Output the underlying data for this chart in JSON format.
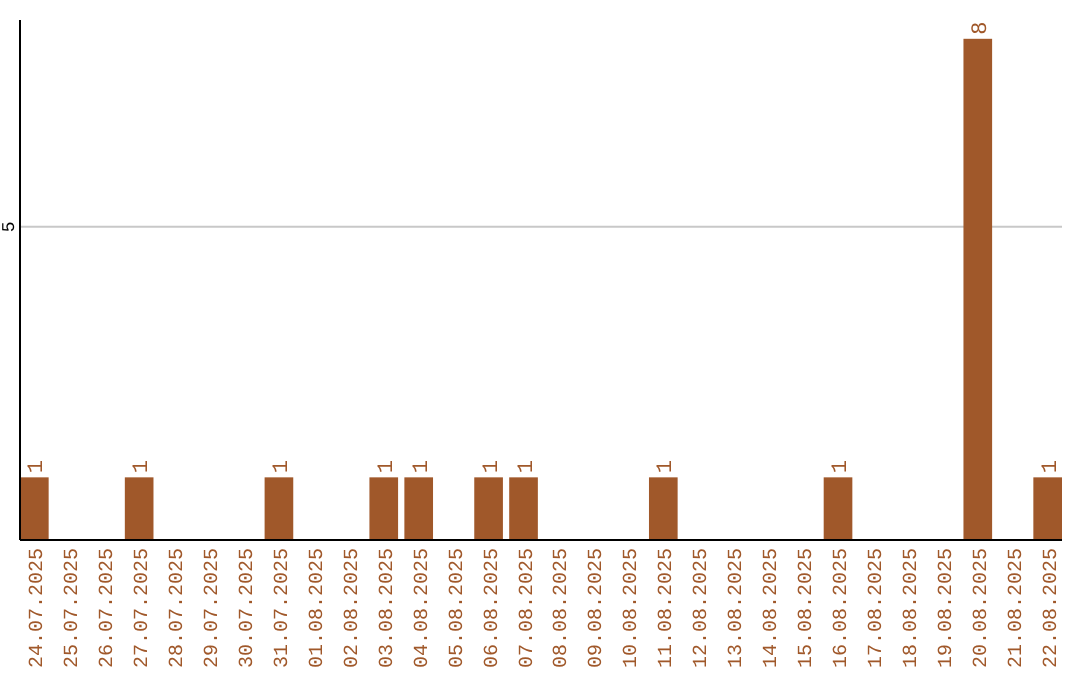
{
  "chart_data": {
    "type": "bar",
    "categories": [
      "24.07.2025",
      "25.07.2025",
      "26.07.2025",
      "27.07.2025",
      "28.07.2025",
      "29.07.2025",
      "30.07.2025",
      "31.07.2025",
      "01.08.2025",
      "02.08.2025",
      "03.08.2025",
      "04.08.2025",
      "05.08.2025",
      "06.08.2025",
      "07.08.2025",
      "08.08.2025",
      "09.08.2025",
      "10.08.2025",
      "11.08.2025",
      "12.08.2025",
      "13.08.2025",
      "14.08.2025",
      "15.08.2025",
      "16.08.2025",
      "17.08.2025",
      "18.08.2025",
      "19.08.2025",
      "20.08.2025",
      "21.08.2025",
      "22.08.2025"
    ],
    "values": [
      1,
      0,
      0,
      1,
      0,
      0,
      0,
      1,
      0,
      0,
      1,
      1,
      0,
      1,
      1,
      0,
      0,
      0,
      1,
      0,
      0,
      0,
      0,
      1,
      0,
      0,
      0,
      8,
      0,
      1
    ],
    "value_labels": [
      "1",
      null,
      null,
      "1",
      null,
      null,
      null,
      "1",
      null,
      null,
      "1",
      "1",
      null,
      "1",
      "1",
      null,
      null,
      null,
      "1",
      null,
      null,
      null,
      null,
      "1",
      null,
      null,
      null,
      "8",
      null,
      "1"
    ],
    "color": "#a0582a",
    "ylim": [
      0,
      8.3
    ],
    "yticks": [
      5
    ],
    "grid": "y"
  }
}
